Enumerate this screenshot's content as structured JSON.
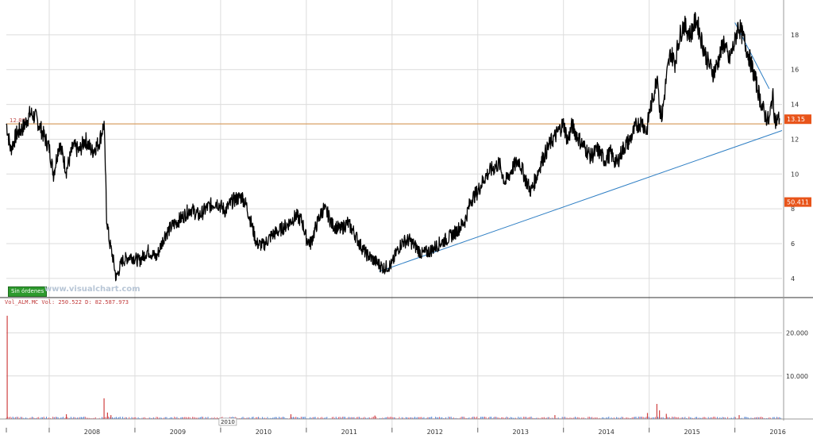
{
  "chart_data": [
    {
      "type": "line",
      "title": "",
      "xlabel": "",
      "ylabel": "",
      "x_ticks": [
        "2008",
        "2009",
        "2010",
        "2011",
        "2012",
        "2013",
        "2014",
        "2015",
        "2016"
      ],
      "x_range": [
        2007.5,
        2016.55
      ],
      "y_ticks": [
        "4",
        "6",
        "8",
        "10",
        "12",
        "14",
        "16",
        "18"
      ],
      "ylim": [
        2.9,
        20.0
      ],
      "grid": "vertical and horizontal",
      "series": [
        {
          "values": [
            [
              2007.5,
              12.9
            ],
            [
              2007.55,
              11.4
            ],
            [
              2007.62,
              12.3
            ],
            [
              2007.7,
              12.7
            ],
            [
              2007.78,
              13.5
            ],
            [
              2007.85,
              13.2
            ],
            [
              2007.92,
              12.4
            ],
            [
              2008.0,
              11.5
            ],
            [
              2008.05,
              10.0
            ],
            [
              2008.12,
              11.8
            ],
            [
              2008.2,
              10.2
            ],
            [
              2008.28,
              11.6
            ],
            [
              2008.35,
              11.3
            ],
            [
              2008.42,
              12.0
            ],
            [
              2008.5,
              11.3
            ],
            [
              2008.58,
              11.8
            ],
            [
              2008.64,
              12.9
            ],
            [
              2008.66,
              9.5
            ],
            [
              2008.67,
              7.5
            ],
            [
              2008.7,
              6.2
            ],
            [
              2008.75,
              5.0
            ],
            [
              2008.78,
              4.0
            ],
            [
              2008.85,
              5.0
            ],
            [
              2008.95,
              5.3
            ],
            [
              2009.05,
              5.0
            ],
            [
              2009.15,
              5.6
            ],
            [
              2009.25,
              5.2
            ],
            [
              2009.35,
              6.5
            ],
            [
              2009.45,
              7.1
            ],
            [
              2009.55,
              7.5
            ],
            [
              2009.65,
              8.0
            ],
            [
              2009.75,
              7.6
            ],
            [
              2009.85,
              8.1
            ],
            [
              2009.95,
              8.4
            ],
            [
              2010.05,
              7.9
            ],
            [
              2010.15,
              8.5
            ],
            [
              2010.25,
              8.7
            ],
            [
              2010.3,
              8.2
            ],
            [
              2010.35,
              7.3
            ],
            [
              2010.42,
              6.0
            ],
            [
              2010.5,
              5.9
            ],
            [
              2010.6,
              6.5
            ],
            [
              2010.7,
              6.8
            ],
            [
              2010.8,
              7.2
            ],
            [
              2010.88,
              7.6
            ],
            [
              2010.95,
              7.3
            ],
            [
              2011.0,
              6.3
            ],
            [
              2011.05,
              6.0
            ],
            [
              2011.1,
              6.8
            ],
            [
              2011.15,
              7.5
            ],
            [
              2011.2,
              8.0
            ],
            [
              2011.25,
              7.7
            ],
            [
              2011.3,
              7.1
            ],
            [
              2011.4,
              6.8
            ],
            [
              2011.48,
              7.2
            ],
            [
              2011.55,
              6.7
            ],
            [
              2011.62,
              6.0
            ],
            [
              2011.7,
              5.4
            ],
            [
              2011.8,
              5.0
            ],
            [
              2011.9,
              4.6
            ],
            [
              2012.0,
              4.8
            ],
            [
              2012.05,
              5.5
            ],
            [
              2012.12,
              6.1
            ],
            [
              2012.2,
              6.2
            ],
            [
              2012.28,
              5.8
            ],
            [
              2012.35,
              5.4
            ],
            [
              2012.45,
              5.6
            ],
            [
              2012.55,
              6.0
            ],
            [
              2012.65,
              6.3
            ],
            [
              2012.75,
              6.7
            ],
            [
              2012.85,
              7.3
            ],
            [
              2012.92,
              8.5
            ],
            [
              2013.0,
              9.0
            ],
            [
              2013.08,
              9.8
            ],
            [
              2013.15,
              10.2
            ],
            [
              2013.25,
              10.6
            ],
            [
              2013.32,
              9.5
            ],
            [
              2013.4,
              10.3
            ],
            [
              2013.48,
              10.8
            ],
            [
              2013.55,
              9.8
            ],
            [
              2013.62,
              9.0
            ],
            [
              2013.68,
              9.8
            ],
            [
              2013.75,
              10.8
            ],
            [
              2013.85,
              11.8
            ],
            [
              2013.92,
              12.3
            ],
            [
              2014.0,
              12.9
            ],
            [
              2014.05,
              11.9
            ],
            [
              2014.1,
              12.8
            ],
            [
              2014.18,
              12.0
            ],
            [
              2014.25,
              11.5
            ],
            [
              2014.32,
              11.0
            ],
            [
              2014.4,
              11.4
            ],
            [
              2014.48,
              10.8
            ],
            [
              2014.55,
              11.2
            ],
            [
              2014.62,
              10.6
            ],
            [
              2014.7,
              11.5
            ],
            [
              2014.78,
              12.0
            ],
            [
              2014.85,
              12.8
            ],
            [
              2014.92,
              13.0
            ],
            [
              2014.97,
              12.4
            ],
            [
              2015.0,
              13.5
            ],
            [
              2015.05,
              14.5
            ],
            [
              2015.1,
              15.8
            ],
            [
              2015.12,
              13.8
            ],
            [
              2015.15,
              13.3
            ],
            [
              2015.2,
              15.5
            ],
            [
              2015.25,
              17.0
            ],
            [
              2015.3,
              16.4
            ],
            [
              2015.35,
              17.8
            ],
            [
              2015.4,
              18.6
            ],
            [
              2015.48,
              18.0
            ],
            [
              2015.55,
              18.9
            ],
            [
              2015.62,
              17.5
            ],
            [
              2015.68,
              16.5
            ],
            [
              2015.75,
              15.8
            ],
            [
              2015.8,
              16.4
            ],
            [
              2015.87,
              17.6
            ],
            [
              2015.93,
              16.5
            ],
            [
              2016.0,
              17.6
            ],
            [
              2016.04,
              18.6
            ],
            [
              2016.1,
              17.8
            ],
            [
              2016.18,
              16.5
            ],
            [
              2016.25,
              15.2
            ],
            [
              2016.3,
              14.2
            ],
            [
              2016.35,
              13.4
            ],
            [
              2016.4,
              13.0
            ],
            [
              2016.44,
              14.6
            ],
            [
              2016.47,
              13.0
            ],
            [
              2016.52,
              13.2
            ]
          ]
        }
      ],
      "horizontal_line": {
        "value": 12.88,
        "label": "12.88",
        "color": "#d9a066"
      },
      "trendlines": [
        {
          "from": [
            2011.85,
            4.4
          ],
          "to": [
            2016.55,
            12.5
          ],
          "color": "#2f7fc4"
        },
        {
          "from": [
            2016.0,
            18.7
          ],
          "to": [
            2016.4,
            14.9
          ],
          "color": "#2f7fc4"
        }
      ],
      "last_value_label": "13.15",
      "colors": {
        "price": "#000000",
        "trendline": "#2f7fc4",
        "hline": "#d9a066",
        "last_label_bg": "#e8541a"
      }
    },
    {
      "type": "bar",
      "title": "",
      "xlabel": "",
      "ylabel": "",
      "y_ticks": [
        "10.000",
        "20.000"
      ],
      "ylim": [
        0,
        26000
      ],
      "baseline_volume": 300,
      "spikes": [
        {
          "x": 2007.51,
          "value": 24000
        },
        {
          "x": 2008.64,
          "value": 4800
        },
        {
          "x": 2008.68,
          "value": 1500
        },
        {
          "x": 2008.72,
          "value": 900
        },
        {
          "x": 2015.09,
          "value": 3500
        },
        {
          "x": 2015.12,
          "value": 2000
        },
        {
          "x": 2015.2,
          "value": 1200
        },
        {
          "x": 2014.98,
          "value": 1400
        },
        {
          "x": 2008.2,
          "value": 1100
        },
        {
          "x": 2010.82,
          "value": 1100
        },
        {
          "x": 2011.8,
          "value": 800
        },
        {
          "x": 2013.9,
          "value": 900
        },
        {
          "x": 2016.05,
          "value": 900
        }
      ],
      "header_text": "Vol_ALM.MC Vol: 250.522 D: 82.587.973",
      "last_value_label": "50.411",
      "colors": {
        "volume_up": "#4a7fd6",
        "volume_down": "#e05a6a",
        "spike": "#d04040",
        "last_label_bg": "#e8541a"
      }
    }
  ],
  "badge_label": "Sin órdenes",
  "watermark": "www.visualchart.com",
  "crosshair_year_label": "2010",
  "colors": {
    "grid": "#dcdcdc",
    "axis_text": "#333333",
    "badge": "#2e9a2e"
  }
}
